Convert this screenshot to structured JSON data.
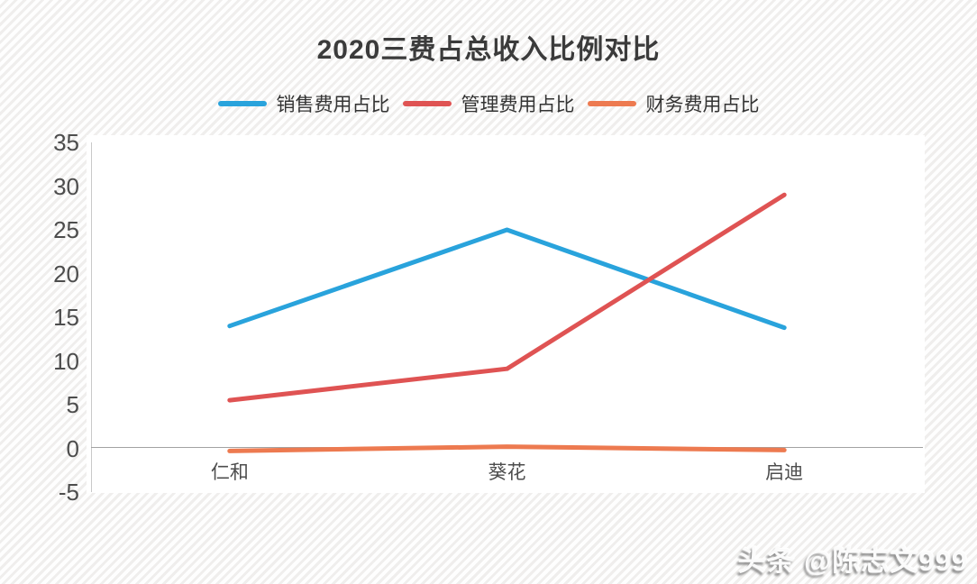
{
  "chart_data": {
    "type": "line",
    "title": "2020三费占总收入比例对比",
    "categories": [
      "仁和",
      "葵花",
      "启迪"
    ],
    "series": [
      {
        "name": "销售费用占比",
        "color": "#29A3DC",
        "values": [
          14,
          25,
          13.8
        ]
      },
      {
        "name": "管理费用占比",
        "color": "#DF5353",
        "values": [
          5.5,
          9.1,
          29
        ]
      },
      {
        "name": "财务费用占比",
        "color": "#ED7A50",
        "values": [
          -0.3,
          0.2,
          -0.2
        ]
      }
    ],
    "y_axis": {
      "min": -5,
      "max": 35,
      "ticks": [
        35,
        30,
        25,
        20,
        15,
        10,
        5,
        0,
        -5
      ]
    },
    "legend_position": "top",
    "grid": false,
    "axis_colors": {
      "vertical": "#c9c9c9",
      "horizontal": "#a3a3a3"
    }
  },
  "watermark": {
    "text": "头条 @陈志文999"
  }
}
